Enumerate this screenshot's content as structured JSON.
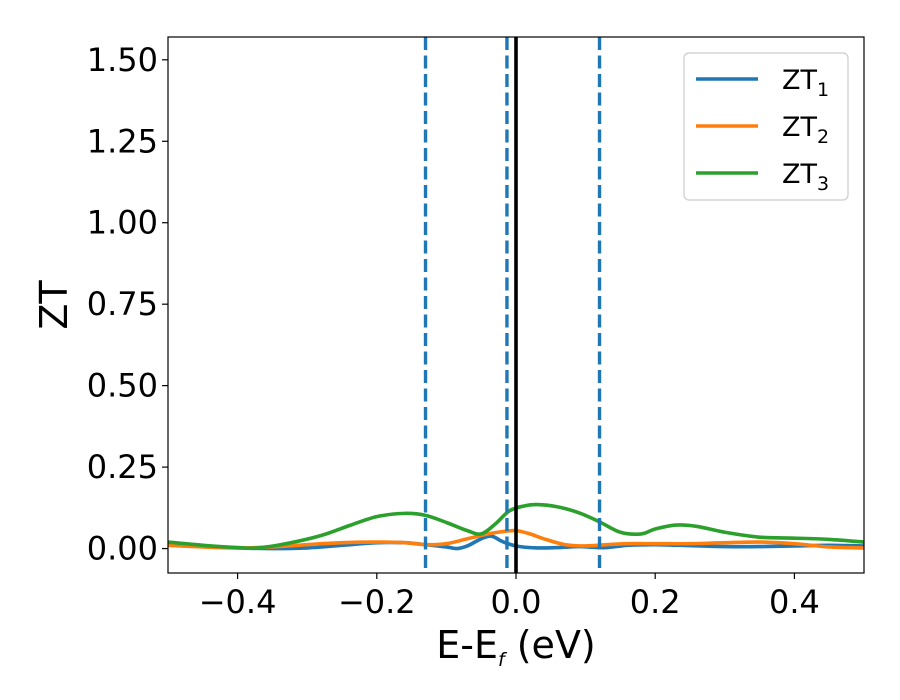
{
  "chart_data": {
    "type": "line",
    "title": "",
    "xlabel": {
      "main": "E-E",
      "sub": "f",
      "unit": " (eV)"
    },
    "ylabel": "ZT",
    "xlim": [
      -0.5,
      0.5
    ],
    "ylim": [
      -0.075,
      1.57
    ],
    "x_ticks": [
      -0.4,
      -0.2,
      0.0,
      0.2,
      0.4
    ],
    "x_tick_labels": [
      "−0.4",
      "−0.2",
      "0.0",
      "0.2",
      "0.4"
    ],
    "y_ticks": [
      0.0,
      0.25,
      0.5,
      0.75,
      1.0,
      1.25,
      1.5
    ],
    "y_tick_labels": [
      "0.00",
      "0.25",
      "0.50",
      "0.75",
      "1.00",
      "1.25",
      "1.50"
    ],
    "grid": false,
    "legend": {
      "location": "top-right",
      "entries": [
        {
          "base": "ZT",
          "sub": "1"
        },
        {
          "base": "ZT",
          "sub": "2"
        },
        {
          "base": "ZT",
          "sub": "3"
        }
      ]
    },
    "reference_lines": [
      {
        "orientation": "vertical",
        "x": 0.0,
        "style": "solid",
        "color": "#000000"
      },
      {
        "orientation": "vertical",
        "x": -0.13,
        "style": "dashed",
        "color": "#1f77b4"
      },
      {
        "orientation": "vertical",
        "x": -0.013,
        "style": "dashed",
        "color": "#1f77b4"
      },
      {
        "orientation": "vertical",
        "x": 0.12,
        "style": "dashed",
        "color": "#1f77b4"
      }
    ],
    "series": [
      {
        "color": "#1f77b4",
        "x": [
          -0.5,
          -0.45,
          -0.4,
          -0.35,
          -0.3,
          -0.25,
          -0.2,
          -0.16,
          -0.13,
          -0.1,
          -0.085,
          -0.07,
          -0.05,
          -0.035,
          -0.02,
          0.0,
          0.03,
          0.06,
          0.09,
          0.11,
          0.13,
          0.16,
          0.2,
          0.25,
          0.3,
          0.35,
          0.4,
          0.45,
          0.5
        ],
        "values": [
          0.015,
          0.008,
          0.002,
          0.0,
          0.002,
          0.01,
          0.018,
          0.018,
          0.012,
          0.005,
          0.0,
          0.008,
          0.03,
          0.038,
          0.022,
          0.008,
          0.002,
          0.003,
          0.006,
          0.004,
          0.003,
          0.01,
          0.012,
          0.009,
          0.006,
          0.006,
          0.008,
          0.01,
          0.008
        ]
      },
      {
        "color": "#ff7f0e",
        "x": [
          -0.5,
          -0.45,
          -0.4,
          -0.35,
          -0.3,
          -0.25,
          -0.2,
          -0.16,
          -0.13,
          -0.1,
          -0.07,
          -0.04,
          -0.02,
          0.0,
          0.02,
          0.04,
          0.07,
          0.1,
          0.13,
          0.16,
          0.2,
          0.25,
          0.3,
          0.35,
          0.4,
          0.45,
          0.5
        ],
        "values": [
          0.01,
          0.005,
          0.002,
          0.005,
          0.012,
          0.018,
          0.02,
          0.018,
          0.012,
          0.015,
          0.03,
          0.045,
          0.052,
          0.055,
          0.045,
          0.03,
          0.012,
          0.008,
          0.012,
          0.015,
          0.015,
          0.015,
          0.018,
          0.02,
          0.015,
          0.005,
          0.002
        ]
      },
      {
        "color": "#2ca02c",
        "x": [
          -0.5,
          -0.45,
          -0.4,
          -0.37,
          -0.33,
          -0.28,
          -0.24,
          -0.2,
          -0.16,
          -0.13,
          -0.1,
          -0.07,
          -0.05,
          -0.03,
          -0.01,
          0.01,
          0.03,
          0.06,
          0.09,
          0.12,
          0.15,
          0.18,
          0.2,
          0.23,
          0.26,
          0.3,
          0.35,
          0.4,
          0.45,
          0.5
        ],
        "values": [
          0.02,
          0.01,
          0.003,
          0.002,
          0.015,
          0.04,
          0.07,
          0.098,
          0.108,
          0.102,
          0.08,
          0.055,
          0.045,
          0.075,
          0.115,
          0.13,
          0.135,
          0.128,
          0.11,
          0.082,
          0.05,
          0.045,
          0.06,
          0.072,
          0.068,
          0.05,
          0.035,
          0.032,
          0.028,
          0.02
        ]
      }
    ]
  }
}
